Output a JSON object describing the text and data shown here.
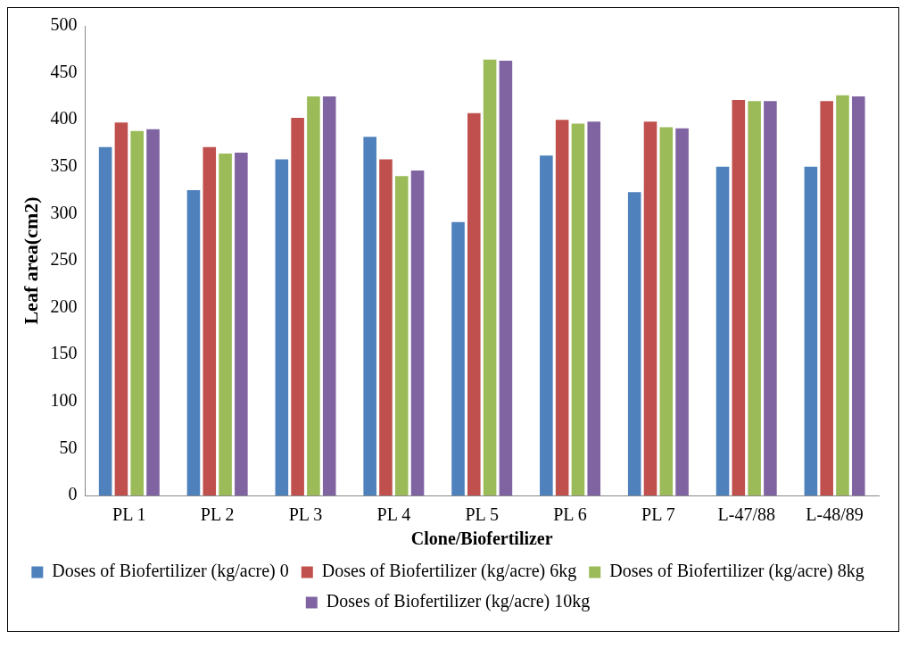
{
  "chart_data": {
    "type": "bar",
    "xlabel": "Clone/Biofertilizer",
    "ylabel": "Leaf area(cm2)",
    "categories": [
      "PL 1",
      "PL 2",
      "PL 3",
      "PL 4",
      "PL 5",
      "PL 6",
      "PL 7",
      "L-47/88",
      "L-48/89"
    ],
    "series": [
      {
        "name": "Doses of Biofertilizer (kg/acre) 0",
        "color": "#4f81bd",
        "values": [
          371,
          325,
          358,
          382,
          291,
          362,
          323,
          350,
          350
        ]
      },
      {
        "name": "Doses of Biofertilizer (kg/acre) 6kg",
        "color": "#c0504d",
        "values": [
          397,
          371,
          402,
          358,
          407,
          400,
          398,
          421,
          420
        ]
      },
      {
        "name": "Doses of Biofertilizer (kg/acre) 8kg",
        "color": "#9bbb59",
        "values": [
          388,
          364,
          425,
          340,
          464,
          396,
          392,
          420,
          426
        ]
      },
      {
        "name": "Doses of Biofertilizer (kg/acre) 10kg",
        "color": "#8064a2",
        "values": [
          390,
          365,
          425,
          346,
          463,
          398,
          391,
          420,
          425
        ]
      }
    ],
    "ylim": [
      0,
      500
    ],
    "yticks": [
      0,
      50,
      100,
      150,
      200,
      250,
      300,
      350,
      400,
      450,
      500
    ],
    "grid": false,
    "legend": "bottom"
  }
}
